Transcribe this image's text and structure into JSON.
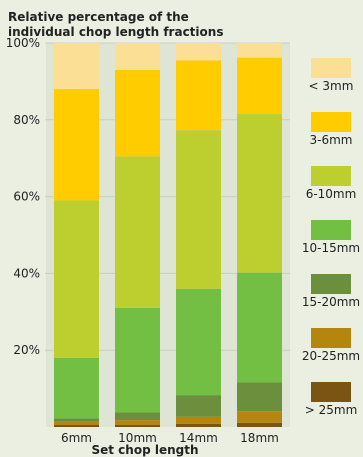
{
  "chart_data": {
    "type": "bar",
    "stacked": true,
    "title_lines": [
      "Relative percentage of the",
      "individual chop length fractions"
    ],
    "xlabel": "Set chop length",
    "ylabel": "",
    "ylim": [
      0,
      100
    ],
    "yticks": [
      "100%",
      "80%",
      "60%",
      "40%",
      "20%"
    ],
    "ytick_values": [
      100,
      80,
      60,
      40,
      20
    ],
    "grid": true,
    "legend_position": "right",
    "categories": [
      "6mm",
      "10mm",
      "14mm",
      "18mm"
    ],
    "series": [
      {
        "name": "> 25mm",
        "color": "#7a5412",
        "values": [
          0.6,
          0.6,
          0.8,
          1.1
        ]
      },
      {
        "name": "20-25mm",
        "color": "#b5860e",
        "values": [
          0.8,
          1.2,
          1.9,
          3.0
        ]
      },
      {
        "name": "15-20mm",
        "color": "#6b8f3c",
        "values": [
          0.8,
          2.0,
          5.6,
          7.5
        ]
      },
      {
        "name": "10-15mm",
        "color": "#72bf44",
        "values": [
          15.8,
          27.2,
          27.7,
          28.6
        ]
      },
      {
        "name": "6-10mm",
        "color": "#bccf2f",
        "values": [
          41.0,
          39.5,
          41.3,
          41.3
        ]
      },
      {
        "name": "3-6mm",
        "color": "#ffcc00",
        "values": [
          29.0,
          22.5,
          18.2,
          14.7
        ]
      },
      {
        "name": "< 3mm",
        "color": "#fadf94",
        "values": [
          12.0,
          7.0,
          4.5,
          3.8
        ]
      }
    ]
  }
}
